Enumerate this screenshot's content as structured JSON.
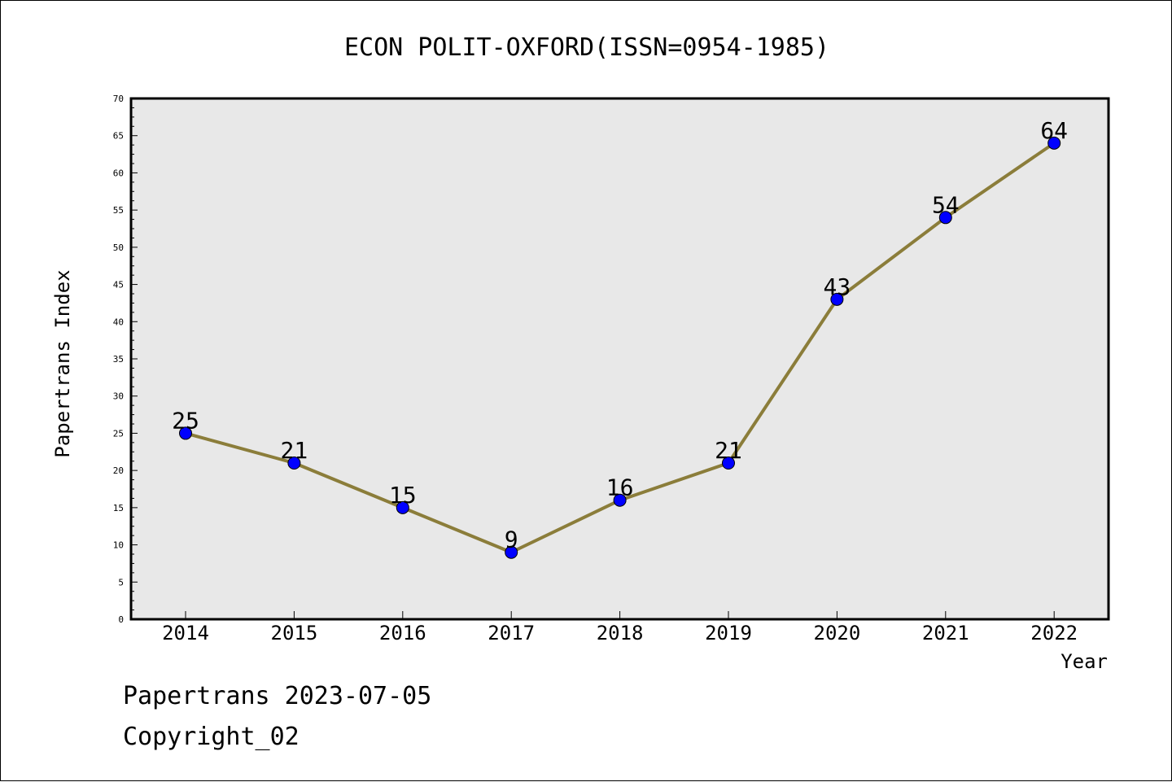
{
  "chart_data": {
    "type": "line",
    "title": "ECON POLIT-OXFORD(ISSN=0954-1985)",
    "xlabel": "Year",
    "ylabel": "Papertrans Index",
    "categories": [
      "2014",
      "2015",
      "2016",
      "2017",
      "2018",
      "2019",
      "2020",
      "2021",
      "2022"
    ],
    "series": [
      {
        "values": [
          25,
          21,
          15,
          9,
          16,
          21,
          43,
          54,
          64
        ]
      }
    ],
    "data_labels": [
      "25",
      "21",
      "15",
      "9",
      "16",
      "21",
      "43",
      "54",
      "64"
    ],
    "ylim": [
      0,
      70
    ],
    "yticks": [
      "0",
      "5",
      "10",
      "15",
      "20",
      "25",
      "30",
      "35",
      "40",
      "45",
      "50",
      "55",
      "60",
      "65",
      "70"
    ],
    "grid": false,
    "colors": {
      "line": "#8b7d3a",
      "marker": "#0000ff",
      "plot_bg": "#e8e8e8"
    }
  },
  "footer": {
    "date_line": "Papertrans 2023-07-05",
    "copyright_line": "Copyright_02"
  }
}
